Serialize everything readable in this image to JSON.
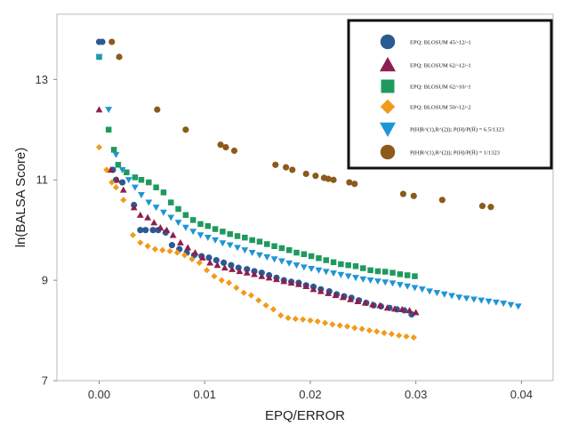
{
  "chart_data": {
    "type": "scatter",
    "title": "",
    "xlabel": "EPQ/ERROR",
    "ylabel": "ln(BALSA Score)",
    "xlim": [
      -0.004,
      0.043
    ],
    "ylim": [
      7,
      14.3
    ],
    "xticks": [
      0.0,
      0.01,
      0.02,
      0.03,
      0.04
    ],
    "xtick_labels": [
      "0.00",
      "0.01",
      "0.02",
      "0.03",
      "0.04"
    ],
    "yticks": [
      7,
      9,
      11,
      13
    ],
    "ytick_labels": [
      "7",
      "9",
      "11",
      "13"
    ],
    "grid": false,
    "legend_position": "top-right",
    "series": [
      {
        "name": "EPQ: BLOSUM 45/-12/-1",
        "marker": "circle",
        "color": "#2b5a92",
        "x": [
          0.0,
          0.0003,
          0.0013,
          0.0016,
          0.0022,
          0.0033,
          0.0039,
          0.0044,
          0.0051,
          0.0056,
          0.0063,
          0.0069,
          0.0076,
          0.0083,
          0.009,
          0.0097,
          0.0104,
          0.0111,
          0.0118,
          0.0125,
          0.0132,
          0.014,
          0.0147,
          0.0154,
          0.0161,
          0.0168,
          0.0175,
          0.0182,
          0.0189,
          0.0196,
          0.0203,
          0.021,
          0.0218,
          0.0225,
          0.0232,
          0.0239,
          0.0246,
          0.0253,
          0.026,
          0.0267,
          0.0275,
          0.0282,
          0.0289,
          0.0296
        ],
        "y": [
          13.75,
          13.75,
          11.2,
          11.0,
          10.95,
          10.5,
          10.0,
          10.0,
          10.0,
          10.0,
          9.95,
          9.7,
          9.62,
          9.55,
          9.5,
          9.48,
          9.45,
          9.4,
          9.35,
          9.3,
          9.25,
          9.22,
          9.18,
          9.15,
          9.1,
          9.05,
          9.0,
          8.97,
          8.95,
          8.9,
          8.87,
          8.82,
          8.78,
          8.72,
          8.68,
          8.65,
          8.6,
          8.55,
          8.5,
          8.48,
          8.45,
          8.42,
          8.4,
          8.32
        ]
      },
      {
        "name": "EPQ: BLOSUM 62/-12/-1",
        "marker": "triangle",
        "color": "#8c1f4d",
        "x": [
          0.0,
          0.0011,
          0.0017,
          0.0023,
          0.0033,
          0.0039,
          0.0046,
          0.0052,
          0.0058,
          0.0064,
          0.007,
          0.0077,
          0.0084,
          0.0091,
          0.0098,
          0.0105,
          0.0112,
          0.0119,
          0.0126,
          0.0133,
          0.014,
          0.0147,
          0.0154,
          0.0161,
          0.0168,
          0.0175,
          0.0182,
          0.0189,
          0.0196,
          0.0203,
          0.021,
          0.0217,
          0.0224,
          0.0231,
          0.0238,
          0.0245,
          0.0252,
          0.0259,
          0.0266,
          0.0273,
          0.028,
          0.0287,
          0.0294,
          0.03
        ],
        "y": [
          12.4,
          11.2,
          11.0,
          10.8,
          10.45,
          10.3,
          10.25,
          10.15,
          10.05,
          10.0,
          9.9,
          9.75,
          9.65,
          9.55,
          9.45,
          9.35,
          9.3,
          9.25,
          9.22,
          9.18,
          9.15,
          9.12,
          9.08,
          9.05,
          9.02,
          8.98,
          8.95,
          8.92,
          8.88,
          8.82,
          8.78,
          8.74,
          8.7,
          8.66,
          8.62,
          8.58,
          8.55,
          8.52,
          8.5,
          8.45,
          8.43,
          8.42,
          8.4,
          8.36
        ]
      },
      {
        "name": "EPQ: BLOSUM 62/-10/-1",
        "marker": "square",
        "color": "#1e9a5f",
        "x": [
          0.0,
          0.0009,
          0.0014,
          0.0018,
          0.0026,
          0.0034,
          0.004,
          0.0047,
          0.0054,
          0.0061,
          0.0068,
          0.0075,
          0.0082,
          0.0089,
          0.0096,
          0.0103,
          0.011,
          0.0117,
          0.0124,
          0.0131,
          0.0138,
          0.0145,
          0.0152,
          0.0159,
          0.0166,
          0.0173,
          0.018,
          0.0187,
          0.0194,
          0.0201,
          0.0208,
          0.0215,
          0.0222,
          0.0229,
          0.0236,
          0.0243,
          0.025,
          0.0257,
          0.0264,
          0.0271,
          0.0278,
          0.0285,
          0.0292,
          0.0299
        ],
        "y": [
          13.45,
          12.0,
          11.6,
          11.3,
          11.15,
          11.05,
          11.0,
          10.95,
          10.85,
          10.75,
          10.55,
          10.42,
          10.3,
          10.2,
          10.12,
          10.08,
          10.02,
          9.97,
          9.92,
          9.88,
          9.85,
          9.8,
          9.77,
          9.72,
          9.68,
          9.64,
          9.6,
          9.55,
          9.52,
          9.48,
          9.44,
          9.4,
          9.36,
          9.32,
          9.3,
          9.28,
          9.24,
          9.2,
          9.18,
          9.17,
          9.15,
          9.12,
          9.1,
          9.08
        ]
      },
      {
        "name": "EPQ: BLOSUM 50/-12/-2",
        "marker": "diamond",
        "color": "#f29a1b",
        "x": [
          0.0,
          0.0007,
          0.0012,
          0.0016,
          0.0023,
          0.0032,
          0.0039,
          0.0046,
          0.0053,
          0.006,
          0.0067,
          0.0074,
          0.0081,
          0.0088,
          0.0095,
          0.0102,
          0.0109,
          0.0116,
          0.0123,
          0.013,
          0.0137,
          0.0144,
          0.0151,
          0.0158,
          0.0165,
          0.0172,
          0.0179,
          0.0186,
          0.0193,
          0.02,
          0.0207,
          0.0214,
          0.0221,
          0.0228,
          0.0235,
          0.0242,
          0.0249,
          0.0256,
          0.0263,
          0.027,
          0.0277,
          0.0284,
          0.0291,
          0.0298
        ],
        "y": [
          11.65,
          11.2,
          10.95,
          10.85,
          10.6,
          9.9,
          9.75,
          9.68,
          9.62,
          9.6,
          9.58,
          9.55,
          9.5,
          9.42,
          9.35,
          9.2,
          9.08,
          9.0,
          8.95,
          8.85,
          8.75,
          8.7,
          8.6,
          8.5,
          8.42,
          8.3,
          8.25,
          8.23,
          8.22,
          8.2,
          8.18,
          8.15,
          8.12,
          8.1,
          8.08,
          8.05,
          8.03,
          8.0,
          7.98,
          7.95,
          7.93,
          7.9,
          7.88,
          7.86
        ]
      },
      {
        "name": "P(H|R^(1),R^(2)); P(H)/P(H̄) = 6.5/1323",
        "marker": "triangle-down",
        "color": "#1f95d4",
        "x": [
          0.0,
          0.0009,
          0.0016,
          0.0022,
          0.0028,
          0.0034,
          0.004,
          0.0047,
          0.0054,
          0.0061,
          0.0068,
          0.0075,
          0.0082,
          0.0089,
          0.0096,
          0.0103,
          0.011,
          0.0117,
          0.0124,
          0.0131,
          0.0138,
          0.0145,
          0.0152,
          0.0159,
          0.0166,
          0.0173,
          0.018,
          0.0187,
          0.0194,
          0.0201,
          0.0208,
          0.0215,
          0.0222,
          0.0229,
          0.0236,
          0.0243,
          0.025,
          0.0257,
          0.0264,
          0.0271,
          0.0278,
          0.0285,
          0.0292,
          0.0299,
          0.0306,
          0.0313,
          0.032,
          0.0327,
          0.0334,
          0.0341,
          0.0348,
          0.0355,
          0.0362,
          0.0369,
          0.0376,
          0.0383,
          0.039,
          0.0397
        ],
        "y": [
          13.45,
          12.4,
          11.5,
          11.2,
          11.0,
          10.85,
          10.7,
          10.55,
          10.45,
          10.35,
          10.25,
          10.15,
          10.05,
          9.97,
          9.9,
          9.85,
          9.8,
          9.74,
          9.7,
          9.65,
          9.6,
          9.55,
          9.5,
          9.46,
          9.42,
          9.38,
          9.34,
          9.3,
          9.26,
          9.23,
          9.2,
          9.17,
          9.14,
          9.11,
          9.08,
          9.05,
          9.02,
          9.0,
          8.98,
          8.96,
          8.94,
          8.91,
          8.88,
          8.85,
          8.82,
          8.78,
          8.75,
          8.72,
          8.69,
          8.66,
          8.64,
          8.62,
          8.6,
          8.58,
          8.56,
          8.54,
          8.51,
          8.48
        ]
      },
      {
        "name": "P(H|R^(1),R^(2)); P(H)/P(H̄) = 1/1323",
        "marker": "circle",
        "color": "#8c5a1a",
        "x": [
          0.0012,
          0.0019,
          0.0055,
          0.0082,
          0.0115,
          0.012,
          0.0128,
          0.0167,
          0.0177,
          0.0183,
          0.0196,
          0.0205,
          0.0213,
          0.0217,
          0.0222,
          0.0237,
          0.0242,
          0.0288,
          0.0298,
          0.0325,
          0.0363,
          0.0371
        ],
        "y": [
          13.75,
          13.45,
          12.4,
          12.0,
          11.7,
          11.65,
          11.58,
          11.3,
          11.25,
          11.2,
          11.12,
          11.08,
          11.04,
          11.02,
          11.0,
          10.95,
          10.92,
          10.72,
          10.68,
          10.6,
          10.48,
          10.46
        ]
      }
    ],
    "legend": [
      {
        "label": "EPQ: BLOSUM 45/-12/-1",
        "marker": "circle",
        "color": "#2b5a92"
      },
      {
        "label": "EPQ: BLOSUM 62/-12/-1",
        "marker": "triangle",
        "color": "#8c1f4d"
      },
      {
        "label": "EPQ: BLOSUM 62/-10/-1",
        "marker": "square",
        "color": "#1e9a5f"
      },
      {
        "label": "EPQ: BLOSUM 50/-12/-2",
        "marker": "diamond",
        "color": "#f29a1b"
      },
      {
        "label": "P(H|R^(1),R^(2)); P(H)/P(H̄) = 6.5/1323",
        "marker": "triangle-down",
        "color": "#1f95d4"
      },
      {
        "label": "P(H|R^(1),R^(2)); P(H)/P(H̄) = 1/1323",
        "marker": "circle",
        "color": "#8c5a1a"
      }
    ]
  }
}
